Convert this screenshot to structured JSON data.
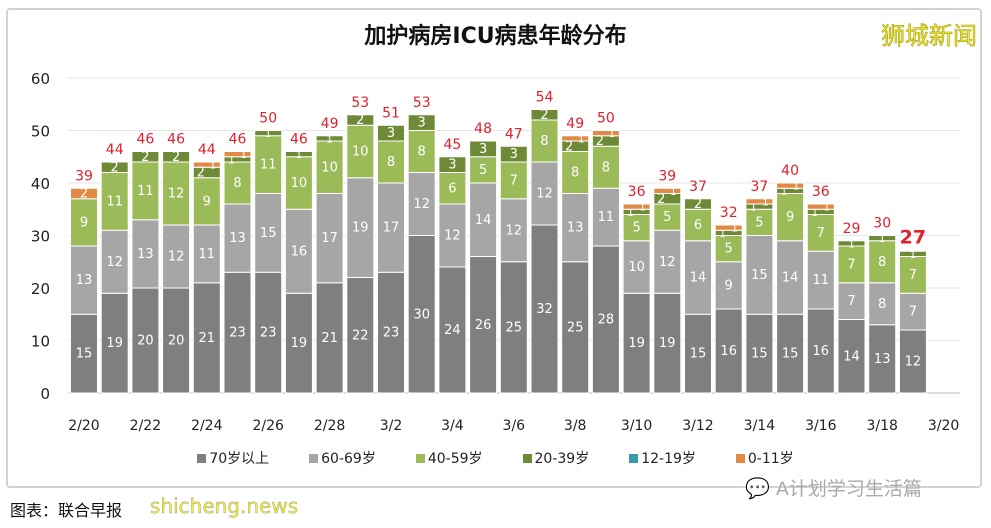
{
  "chart_data": {
    "type": "bar",
    "stacked": true,
    "title": "加护病房ICU病患年龄分布",
    "categories": [
      "2/20",
      "2/21",
      "2/22",
      "2/23",
      "2/24",
      "2/25",
      "2/26",
      "2/27",
      "2/28",
      "3/1",
      "3/2",
      "3/3",
      "3/4",
      "3/5",
      "3/6",
      "3/7",
      "3/8",
      "3/9",
      "3/10",
      "3/11",
      "3/12",
      "3/13",
      "3/14",
      "3/15",
      "3/16",
      "3/17",
      "3/18",
      "3/19"
    ],
    "x_tick_labels": [
      "2/20",
      "2/22",
      "2/24",
      "2/26",
      "2/28",
      "3/2",
      "3/4",
      "3/6",
      "3/8",
      "3/10",
      "3/12",
      "3/14",
      "3/16",
      "3/18",
      "3/20"
    ],
    "y_ticks": [
      0,
      10,
      20,
      30,
      40,
      50,
      60
    ],
    "ylim": [
      0,
      60
    ],
    "grid": true,
    "legend_position": "bottom",
    "series": [
      {
        "name": "70岁以上",
        "color": "#807e80",
        "values": [
          15,
          19,
          20,
          20,
          21,
          23,
          23,
          19,
          21,
          22,
          23,
          30,
          24,
          26,
          25,
          32,
          25,
          28,
          19,
          19,
          15,
          16,
          15,
          15,
          16,
          14,
          13,
          12
        ]
      },
      {
        "name": "60-69岁",
        "color": "#a6a6a6",
        "values": [
          13,
          12,
          13,
          12,
          11,
          13,
          15,
          16,
          17,
          19,
          17,
          12,
          12,
          14,
          12,
          12,
          13,
          11,
          10,
          12,
          14,
          9,
          15,
          14,
          11,
          7,
          8,
          7
        ]
      },
      {
        "name": "40-59岁",
        "color": "#9bbb59",
        "values": [
          9,
          11,
          11,
          12,
          9,
          8,
          11,
          10,
          10,
          10,
          8,
          8,
          6,
          5,
          7,
          8,
          8,
          8,
          5,
          5,
          6,
          5,
          5,
          9,
          7,
          7,
          8,
          7
        ]
      },
      {
        "name": "20-39岁",
        "color": "#6f8a36",
        "values": [
          0,
          2,
          2,
          2,
          2,
          1,
          1,
          1,
          1,
          2,
          3,
          3,
          3,
          3,
          3,
          2,
          2,
          2,
          1,
          2,
          2,
          1,
          1,
          1,
          1,
          1,
          1,
          1
        ]
      },
      {
        "name": "12-19岁",
        "color": "#3a9aad",
        "values": [
          0,
          0,
          0,
          0,
          0,
          0,
          0,
          0,
          0,
          0,
          0,
          0,
          0,
          0,
          0,
          0,
          0,
          0,
          0,
          0,
          0,
          0,
          0,
          0,
          0,
          0,
          0,
          0
        ]
      },
      {
        "name": "0-11岁",
        "color": "#e08a45",
        "values": [
          2,
          0,
          0,
          0,
          1,
          1,
          0,
          0,
          0,
          0,
          0,
          0,
          0,
          0,
          0,
          0,
          1,
          1,
          1,
          1,
          0,
          1,
          1,
          1,
          1,
          0,
          0,
          0
        ]
      }
    ],
    "totals": [
      39,
      44,
      46,
      46,
      44,
      46,
      50,
      46,
      49,
      53,
      51,
      53,
      45,
      48,
      47,
      54,
      49,
      50,
      36,
      39,
      37,
      32,
      37,
      40,
      36,
      29,
      30,
      27
    ],
    "total_label_color": "#e0202a"
  },
  "watermark": "狮城新闻",
  "source": "图表：联合早报",
  "source_watermark": "shicheng.news",
  "wechat_account": "A计划学习生活篇"
}
